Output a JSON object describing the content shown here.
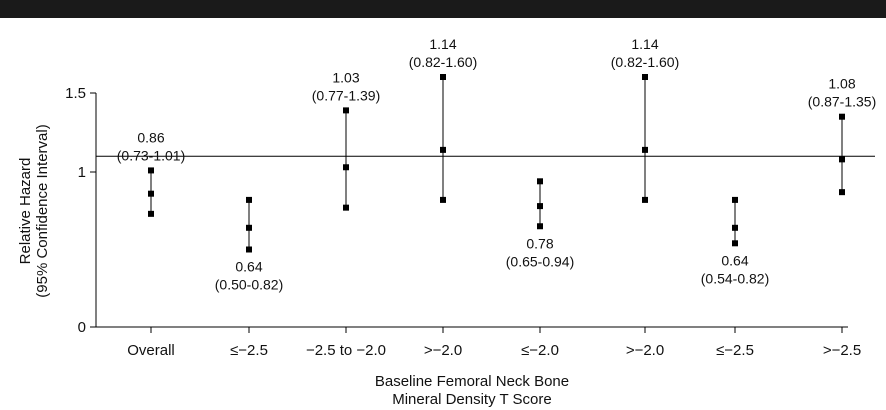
{
  "chart_data": {
    "type": "scatter",
    "subtype": "forest-plot-error-bars",
    "ylabel_lines": [
      "Relative Hazard",
      "(95% Confidence Interval)"
    ],
    "xlabel_lines": [
      "Baseline Femoral Neck Bone",
      "Mineral Density T Score"
    ],
    "yticks": [
      {
        "label": "0",
        "value": 0
      },
      {
        "label": "1",
        "value": 1
      },
      {
        "label": "1.5",
        "value": 1.5
      }
    ],
    "ylim": [
      0,
      1.6
    ],
    "reference_line": 1.1,
    "categories": [
      "Overall",
      "≤−2.5",
      "−2.5 to −2.0",
      ">−2.0",
      "≤−2.0",
      ">−2.0",
      "≤−2.5",
      ">−2.5"
    ],
    "points": [
      {
        "estimate": 0.86,
        "low": 0.73,
        "high": 1.01,
        "label": "0.86",
        "ci_label": "(0.73-1.01)",
        "label_pos": "above"
      },
      {
        "estimate": 0.64,
        "low": 0.5,
        "high": 0.82,
        "label": "0.64",
        "ci_label": "(0.50-0.82)",
        "label_pos": "below"
      },
      {
        "estimate": 1.03,
        "low": 0.77,
        "high": 1.39,
        "label": "1.03",
        "ci_label": "(0.77-1.39)",
        "label_pos": "above"
      },
      {
        "estimate": 1.14,
        "low": 0.82,
        "high": 1.6,
        "label": "1.14",
        "ci_label": "(0.82-1.60)",
        "label_pos": "above"
      },
      {
        "estimate": 0.78,
        "low": 0.65,
        "high": 0.94,
        "label": "0.78",
        "ci_label": "(0.65-0.94)",
        "label_pos": "below"
      },
      {
        "estimate": 1.14,
        "low": 0.82,
        "high": 1.6,
        "label": "1.14",
        "ci_label": "(0.82-1.60)",
        "label_pos": "above"
      },
      {
        "estimate": 0.64,
        "low": 0.54,
        "high": 0.82,
        "label": "0.64",
        "ci_label": "(0.54-0.82)",
        "label_pos": "below"
      },
      {
        "estimate": 1.08,
        "low": 0.87,
        "high": 1.35,
        "label": "1.08",
        "ci_label": "(0.87-1.35)",
        "label_pos": "above"
      }
    ]
  }
}
